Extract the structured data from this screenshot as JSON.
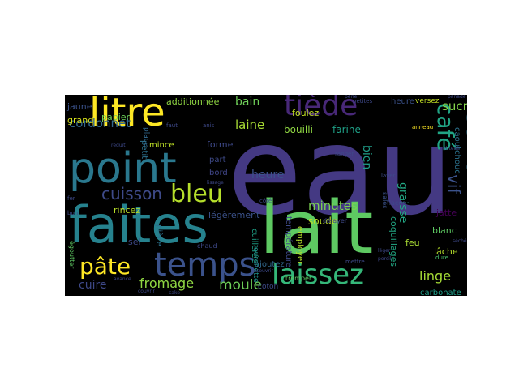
{
  "palette": {
    "background": "#000000",
    "figure": "#ffffff"
  },
  "words": [
    {
      "text": "eau",
      "color": "#443983"
    },
    {
      "text": "lait",
      "color": "#5ec962"
    },
    {
      "text": "faites",
      "color": "#26828e"
    },
    {
      "text": "point",
      "color": "#2a788e"
    },
    {
      "text": "litre",
      "color": "#fde725"
    },
    {
      "text": "temps",
      "color": "#3b528b"
    },
    {
      "text": "laissez",
      "color": "#35b779"
    },
    {
      "text": "tiède",
      "color": "#482878"
    },
    {
      "text": "bleu",
      "color": "#b5de2b"
    },
    {
      "text": "savon",
      "color": "#2c728e"
    },
    {
      "text": "café",
      "color": "#21a585"
    },
    {
      "text": "pâte",
      "color": "#fde725"
    },
    {
      "text": "cuisson",
      "color": "#3e4a89"
    },
    {
      "text": "fromage",
      "color": "#90d743"
    },
    {
      "text": "moule",
      "color": "#6ece58"
    },
    {
      "text": "laine",
      "color": "#a8db34"
    },
    {
      "text": "cordonnet",
      "color": "#31688e"
    },
    {
      "text": "vif",
      "color": "#3b528b"
    },
    {
      "text": "sucre",
      "color": "#84d44b"
    },
    {
      "text": "linge",
      "color": "#a5db36"
    },
    {
      "text": "minutes",
      "color": "#7ad151"
    },
    {
      "text": "cuire",
      "color": "#3e4989"
    },
    {
      "text": "bain",
      "color": "#6ece58"
    },
    {
      "text": "heure",
      "color": "#3b528b"
    },
    {
      "text": "graisse",
      "color": "#22a884"
    },
    {
      "text": "bien",
      "color": "#1f9e89"
    },
    {
      "text": "bouilli",
      "color": "#90d743"
    },
    {
      "text": "farine",
      "color": "#1fa187"
    },
    {
      "text": "soude",
      "color": "#bddf26"
    },
    {
      "text": "additionnée",
      "color": "#90d743"
    },
    {
      "text": "foulez",
      "color": "#c2df23"
    },
    {
      "text": "jaune",
      "color": "#3b528b"
    },
    {
      "text": "papier",
      "color": "#6ece58"
    },
    {
      "text": "grand",
      "color": "#d8e219"
    },
    {
      "text": "mince",
      "color": "#bddf26"
    },
    {
      "text": "forme",
      "color": "#3e4989"
    },
    {
      "text": "part",
      "color": "#3e4a89"
    },
    {
      "text": "bord",
      "color": "#404688"
    },
    {
      "text": "rincez",
      "color": "#b8de29"
    },
    {
      "text": "légèrement",
      "color": "#3b528b"
    },
    {
      "text": "sel",
      "color": "#3e4989"
    },
    {
      "text": "pièce",
      "color": "#2c728e"
    },
    {
      "text": "coton",
      "color": "#3e4a89"
    },
    {
      "text": "feu",
      "color": "#a8db34"
    },
    {
      "text": "blanc",
      "color": "#5ec962"
    },
    {
      "text": "lâche",
      "color": "#b5de2b"
    },
    {
      "text": "jatte",
      "color": "#440154"
    },
    {
      "text": "carbonate",
      "color": "#1f9e89"
    },
    {
      "text": "heure",
      "color": "#3b528b"
    },
    {
      "text": "coquillages",
      "color": "#22a884"
    },
    {
      "text": "employer",
      "color": "#b5de2b"
    },
    {
      "text": "température",
      "color": "#3e4a89"
    },
    {
      "text": "cuillerée",
      "color": "#1fa187"
    },
    {
      "text": "ajoutez",
      "color": "#31688e"
    },
    {
      "text": "tremper",
      "color": "#5ec962"
    },
    {
      "text": "caoutchouc",
      "color": "#2c728e"
    },
    {
      "text": "égoutter",
      "color": "#5ec962"
    },
    {
      "text": "petit",
      "color": "#2c728e"
    },
    {
      "text": "place",
      "color": "#31688e"
    },
    {
      "text": "chaud",
      "color": "#3e4989"
    },
    {
      "text": "fourchette",
      "color": "#21918c"
    },
    {
      "text": "délayer",
      "color": "#3e4989"
    },
    {
      "text": "flaçon",
      "color": "#3e4989"
    },
    {
      "text": "sales",
      "color": "#3b528b"
    },
    {
      "text": "versez",
      "color": "#c2df23"
    },
    {
      "text": "anneau",
      "color": "#fde725"
    },
    {
      "text": "dure",
      "color": "#4ac16d"
    },
    {
      "text": "petites",
      "color": "#3e4989"
    },
    {
      "text": "laver",
      "color": "#3e4989"
    },
    {
      "text": "bon",
      "color": "#3e4989"
    },
    {
      "text": "fer",
      "color": "#3e4989"
    },
    {
      "text": "côté",
      "color": "#3e4989"
    },
    {
      "text": "ranger",
      "color": "#3e4989"
    },
    {
      "text": "mettre",
      "color": "#3e4989"
    },
    {
      "text": "faut",
      "color": "#3e4989"
    },
    {
      "text": "anis",
      "color": "#3e4989"
    },
    {
      "text": "couvrir",
      "color": "#3e4989"
    },
    {
      "text": "cake",
      "color": "#3e4989"
    },
    {
      "text": "perle",
      "color": "#3e4989"
    },
    {
      "text": "panade",
      "color": "#3e4989"
    },
    {
      "text": "obtenir",
      "color": "#3e4989"
    },
    {
      "text": "persil",
      "color": "#3e4989"
    },
    {
      "text": "léger",
      "color": "#3e4989"
    },
    {
      "text": "recouvrir",
      "color": "#3e4989"
    },
    {
      "text": "réduit",
      "color": "#3e4989"
    },
    {
      "text": "avance",
      "color": "#3e4989"
    },
    {
      "text": "lissage",
      "color": "#3e4989"
    },
    {
      "text": "séché",
      "color": "#3e4989"
    }
  ]
}
